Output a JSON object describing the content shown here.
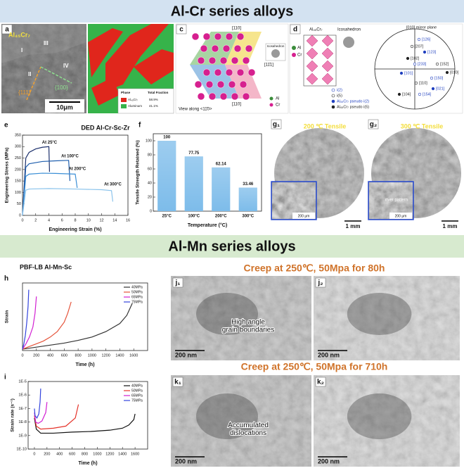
{
  "headers": [
    "Al-Cr series alloys",
    "Al-Mn series alloys"
  ],
  "panel_a": {
    "label": "a",
    "phase": "Al₄₅Cr₇",
    "regions": [
      "I",
      "III",
      "II",
      "IV"
    ],
    "planes": [
      "{111}",
      "{100}"
    ],
    "scale": "10μm"
  },
  "panel_b": {
    "label": "b",
    "legend_header": [
      "Phase",
      "Total Fraction"
    ],
    "legend_rows": [
      [
        "Al₄₅Cr₇",
        "58.9%"
      ],
      [
        "Aluminum",
        "41.1%"
      ]
    ]
  },
  "panel_c": {
    "label": "c",
    "directions": [
      "[110]",
      "[11̄1]",
      "[110]"
    ],
    "inset": "Icosahedron",
    "view": "View along <11̄0>",
    "species": [
      "Al",
      "Cr"
    ]
  },
  "panel_d": {
    "label": "d",
    "structure": "Al₄₅Cr₇",
    "inset": "Icosahedron",
    "species": [
      "Al",
      "Cr"
    ],
    "mirror": "[010] mirror plane",
    "poles": [
      "[126]",
      "[207]",
      "[123]",
      "[102]",
      "[233]",
      "[152]",
      "[101]",
      "[010]",
      "[150]",
      "[110]",
      "[021]",
      "[104]",
      "[154]"
    ],
    "legend": [
      "i(2)",
      "i(5)",
      "Al₄₅Cr₇ pseudo i(2)",
      "Al₄₅Cr₇ pseudo i(5)"
    ]
  },
  "panel_g1": {
    "label": "g₁",
    "caption": "200 ℃ Tensile",
    "scale": "1 mm",
    "inset_scale": "200 μm"
  },
  "panel_g2": {
    "label": "g₂",
    "caption": "300 ℃ Tensile",
    "scale": "1 mm",
    "inset_scale": "200 μm",
    "annotation": "river pattern"
  },
  "panel_j": {
    "title": "Creep at 250℃, 50Mpa for 80h",
    "images": [
      {
        "label": "j₁",
        "scale": "200 nm",
        "annotation": [
          "High angle",
          "grain boundaries"
        ]
      },
      {
        "label": "j₂",
        "scale": "200 nm"
      }
    ]
  },
  "panel_k": {
    "title": "Creep at 250℃, 50Mpa for 710h",
    "images": [
      {
        "label": "k₁",
        "scale": "200 nm",
        "annotation": [
          "Accumulated",
          "dislocations"
        ]
      },
      {
        "label": "k₂",
        "scale": "200 nm"
      }
    ]
  },
  "chart_data": [
    {
      "label": "e",
      "type": "line",
      "title": "DED Al-Cr-Sc-Zr",
      "xlabel": "Engineering Strain (%)",
      "ylabel": "Engineering Stress (MPa)",
      "xlim": [
        0,
        16
      ],
      "xticks": [
        0,
        2,
        4,
        6,
        8,
        10,
        12,
        14,
        16
      ],
      "ylim": [
        0,
        350
      ],
      "yticks": [
        0,
        50,
        100,
        150,
        200,
        250,
        300,
        350
      ],
      "series_labels": true,
      "series": [
        {
          "name": "At 25°C",
          "color": "#1b2f6b",
          "x": [
            0,
            0.5,
            1,
            2,
            3,
            4,
            4.1
          ],
          "values": [
            0,
            250,
            275,
            290,
            297,
            300,
            190
          ]
        },
        {
          "name": "At 100°C",
          "color": "#1f5fae",
          "x": [
            0,
            0.5,
            1,
            3,
            5,
            7,
            7.2
          ],
          "values": [
            0,
            210,
            225,
            235,
            238,
            240,
            150
          ]
        },
        {
          "name": "At 200°C",
          "color": "#3b8fd6",
          "x": [
            0,
            0.5,
            1,
            3,
            5,
            8,
            8.3
          ],
          "values": [
            0,
            170,
            180,
            184,
            183,
            180,
            120
          ]
        },
        {
          "name": "At 300°C",
          "color": "#8cc4ec",
          "x": [
            0,
            0.5,
            1,
            4,
            8,
            12,
            13.5,
            13.7
          ],
          "values": [
            0,
            110,
            115,
            117,
            115,
            112,
            108,
            60
          ]
        }
      ]
    },
    {
      "label": "f",
      "type": "bar",
      "xlabel": "Temperature (°C)",
      "ylabel": "Tensile Strength Retained (%)",
      "categories": [
        "25°C",
        "100°C",
        "200°C",
        "300°C"
      ],
      "values": [
        100,
        77.75,
        62.14,
        33.46
      ],
      "color": "#7dbcea",
      "ylim": [
        0,
        110
      ],
      "yticks": [
        0,
        20,
        40,
        60,
        80,
        100
      ]
    },
    {
      "label": "h",
      "type": "line",
      "title": "PBF-LB Al-Mn-Sc",
      "xlabel": "Time (h)",
      "ylabel": "Strain",
      "xlim": [
        0,
        1800
      ],
      "xticks": [
        0,
        200,
        400,
        600,
        800,
        1000,
        1200,
        1400,
        1600
      ],
      "ylim": [
        0,
        0.1
      ],
      "legend": "upper right",
      "series": [
        {
          "name": "40MPa",
          "color": "#333333",
          "x": [
            0,
            200,
            400,
            600,
            800,
            1000,
            1200,
            1400,
            1500,
            1580
          ],
          "values": [
            0.002,
            0.005,
            0.008,
            0.011,
            0.015,
            0.02,
            0.028,
            0.04,
            0.052,
            0.07
          ]
        },
        {
          "name": "50MPa",
          "color": "#e5533a",
          "x": [
            0,
            100,
            200,
            300,
            400,
            500,
            600,
            650,
            700
          ],
          "values": [
            0.002,
            0.006,
            0.01,
            0.014,
            0.02,
            0.028,
            0.042,
            0.055,
            0.072
          ]
        },
        {
          "name": "65MPa",
          "color": "#d21fd2",
          "x": [
            0,
            50,
            100,
            150,
            180,
            200
          ],
          "values": [
            0.002,
            0.01,
            0.02,
            0.035,
            0.055,
            0.08
          ]
        },
        {
          "name": "75MPa",
          "color": "#3344dd",
          "x": [
            0,
            20,
            40,
            60,
            80,
            90
          ],
          "values": [
            0.002,
            0.01,
            0.022,
            0.04,
            0.065,
            0.09
          ]
        }
      ]
    },
    {
      "label": "i",
      "type": "line",
      "xlabel": "Time (h)",
      "ylabel": "Strain rate (s⁻¹)",
      "ylog": true,
      "xlim": [
        -100,
        1800
      ],
      "xticks": [
        0,
        200,
        400,
        600,
        800,
        1000,
        1200,
        1400,
        1600
      ],
      "ylim": [
        1e-10,
        1e-05
      ],
      "yticks": [
        {
          "value": 1e-10,
          "label": "1E-10"
        },
        {
          "value": 1e-09,
          "label": "1E-9"
        },
        {
          "value": 1e-08,
          "label": "1E-8"
        },
        {
          "value": 1e-07,
          "label": "1E-7"
        },
        {
          "value": 1e-06,
          "label": "1E-6"
        },
        {
          "value": 1e-05,
          "label": "1E-5"
        }
      ],
      "legend": "upper right",
      "series": [
        {
          "name": "40MPa",
          "color": "#111111",
          "x": [
            0,
            30,
            100,
            300,
            600,
            900,
            1200,
            1400,
            1500,
            1580,
            1600
          ],
          "values": [
            2e-08,
            3e-09,
            1.5e-09,
            1.5e-09,
            1.8e-09,
            2e-09,
            2.5e-09,
            3.5e-09,
            6e-09,
            1.5e-08,
            4e-08
          ]
        },
        {
          "name": "50MPa",
          "color": "#e5332a",
          "x": [
            0,
            30,
            100,
            300,
            500,
            650,
            700
          ],
          "values": [
            3e-08,
            5e-09,
            3e-09,
            3.5e-09,
            5e-09,
            2e-08,
            2e-07
          ]
        },
        {
          "name": "65MPa",
          "color": "#d21fd2",
          "x": [
            0,
            20,
            60,
            120,
            180,
            200
          ],
          "values": [
            5e-08,
            1e-08,
            8e-09,
            1.2e-08,
            5e-08,
            3e-07
          ]
        },
        {
          "name": "75MPa",
          "color": "#3344dd",
          "x": [
            0,
            10,
            40,
            70,
            90,
            100
          ],
          "values": [
            1e-07,
            3e-08,
            2e-08,
            4e-08,
            3e-07,
            3e-06
          ]
        }
      ]
    }
  ]
}
